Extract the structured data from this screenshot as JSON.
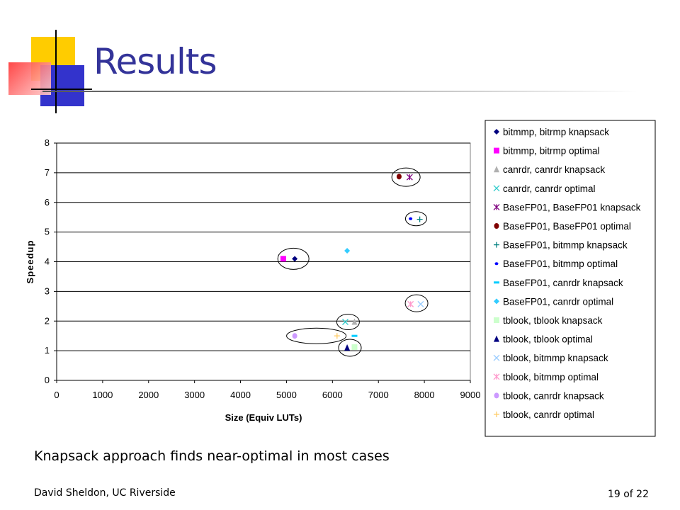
{
  "slide": {
    "title": "Results",
    "caption": "Knapsack approach finds near-optimal  in most cases",
    "footer_author": "David Sheldon, UC Riverside",
    "footer_page": "19 of 22"
  },
  "chart_data": {
    "type": "scatter",
    "title": "",
    "xlabel": "Size (Equiv LUTs)",
    "ylabel": "Speedup",
    "xlim": [
      0,
      9000
    ],
    "ylim": [
      0,
      8
    ],
    "x_ticks": [
      "0",
      "1000",
      "2000",
      "3000",
      "4000",
      "5000",
      "6000",
      "7000",
      "8000",
      "9000"
    ],
    "y_ticks": [
      "0",
      "1",
      "2",
      "3",
      "4",
      "5",
      "6",
      "7",
      "8"
    ],
    "grid": "horizontal",
    "legend_placement": "right",
    "series": [
      {
        "name": "bitmmp, bitrmp knapsack",
        "color": "#000080",
        "marker": "diamond",
        "points": [
          [
            5180,
            4.1
          ]
        ]
      },
      {
        "name": "bitmmp, bitrmp optimal",
        "color": "#ff00ff",
        "marker": "square",
        "points": [
          [
            4930,
            4.1
          ]
        ]
      },
      {
        "name": "canrdr, canrdr knapsack",
        "color": "#b0b0b0",
        "marker": "triangle",
        "points": [
          [
            6480,
            1.97
          ]
        ]
      },
      {
        "name": "canrdr, canrdr optimal",
        "color": "#33cccc",
        "marker": "x",
        "points": [
          [
            6280,
            1.97
          ]
        ]
      },
      {
        "name": "BaseFP01, BaseFP01 knapsack",
        "color": "#800080",
        "marker": "asterisk",
        "points": [
          [
            7680,
            6.85
          ]
        ]
      },
      {
        "name": "BaseFP01, BaseFP01 optimal",
        "color": "#800000",
        "marker": "circle",
        "points": [
          [
            7450,
            6.87
          ]
        ]
      },
      {
        "name": "BaseFP01, bitmmp knapsack",
        "color": "#008080",
        "marker": "plus",
        "points": [
          [
            7900,
            5.43
          ]
        ]
      },
      {
        "name": "BaseFP01, bitmmp optimal",
        "color": "#0000ff",
        "marker": "dot",
        "points": [
          [
            7700,
            5.45
          ]
        ]
      },
      {
        "name": "BaseFP01, canrdr knapsack",
        "color": "#00ccff",
        "marker": "dash",
        "points": [
          [
            6480,
            1.5
          ]
        ]
      },
      {
        "name": "BaseFP01, canrdr optimal",
        "color": "#33ccff",
        "marker": "diamond",
        "points": [
          [
            6320,
            4.37
          ]
        ]
      },
      {
        "name": "tblook, tblook knapsack",
        "color": "#ccffcc",
        "marker": "square",
        "points": [
          [
            6480,
            1.12
          ]
        ]
      },
      {
        "name": "tblook, tblook optimal",
        "color": "#000080",
        "marker": "triangle",
        "points": [
          [
            6320,
            1.1
          ]
        ]
      },
      {
        "name": "tblook, bitmmp knapsack",
        "color": "#99ccff",
        "marker": "x",
        "points": [
          [
            7920,
            2.57
          ]
        ]
      },
      {
        "name": "tblook, bitmmp optimal",
        "color": "#ff99cc",
        "marker": "asterisk",
        "points": [
          [
            7700,
            2.57
          ]
        ]
      },
      {
        "name": "tblook, canrdr knapsack",
        "color": "#cc99ff",
        "marker": "circle",
        "points": [
          [
            5180,
            1.5
          ]
        ]
      },
      {
        "name": "tblook, canrdr optimal",
        "color": "#ffcc66",
        "marker": "plus",
        "points": [
          [
            6100,
            1.5
          ]
        ]
      }
    ],
    "ellipses": [
      {
        "cx": 5150,
        "cy": 4.1
      },
      {
        "cx": 7600,
        "cy": 6.85
      },
      {
        "cx": 7820,
        "cy": 5.45
      },
      {
        "cx": 7830,
        "cy": 2.6
      },
      {
        "cx": 6340,
        "cy": 1.97
      },
      {
        "cx": 5650,
        "cy": 1.5
      },
      {
        "cx": 6380,
        "cy": 1.1
      }
    ]
  }
}
